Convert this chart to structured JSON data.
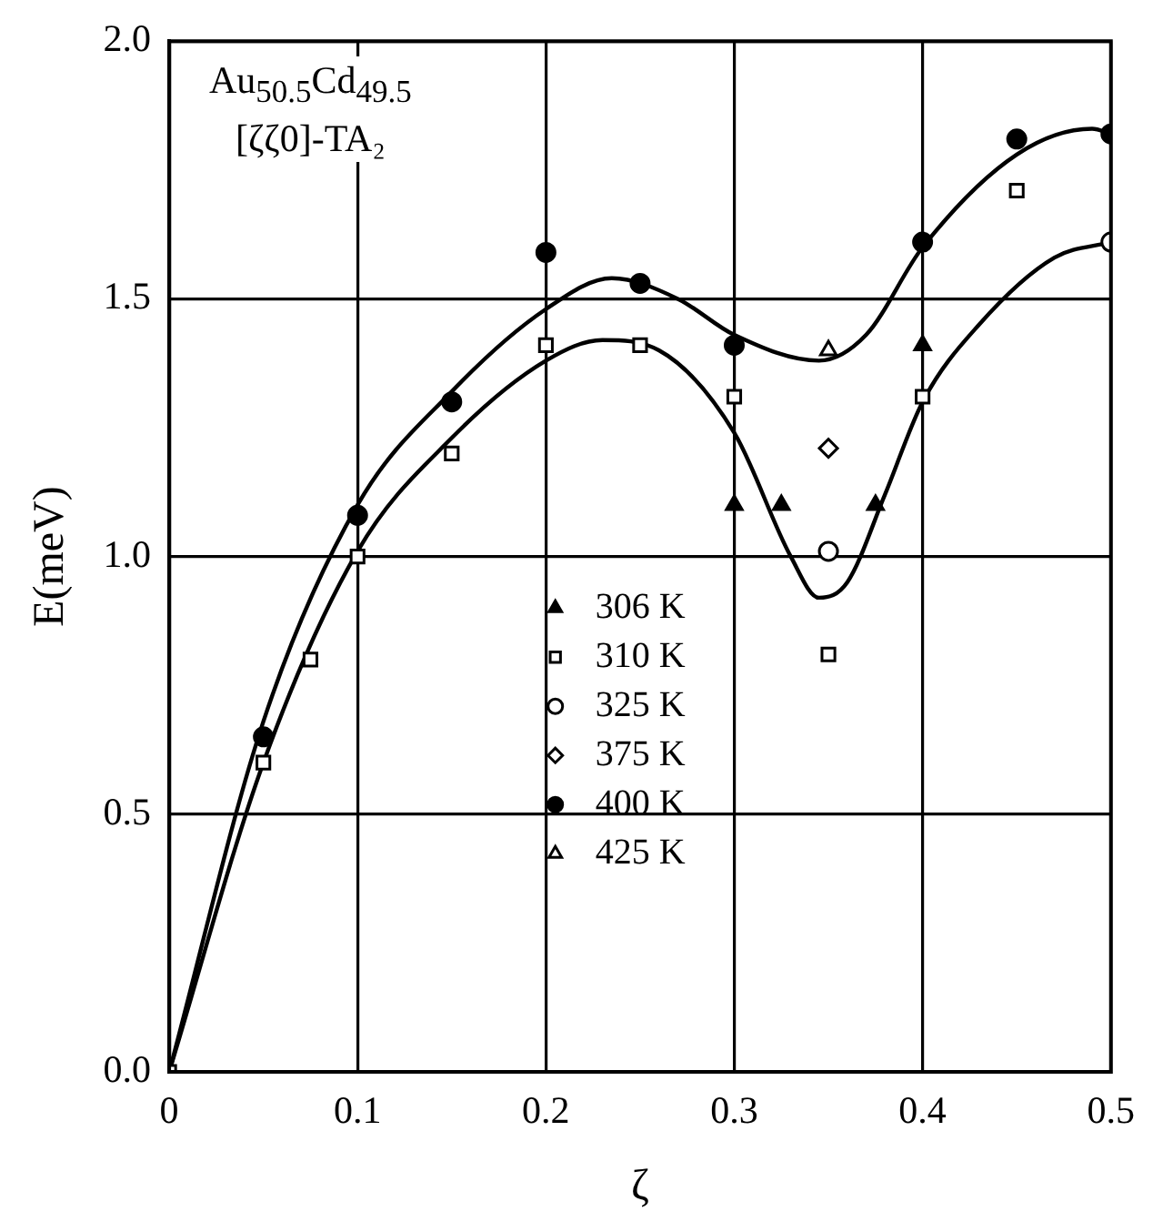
{
  "chart_data": {
    "type": "scatter",
    "xlabel": "ζ",
    "ylabel": "E(meV)",
    "annotations": [
      "Au$_{50.5}$Cd$_{49.5}$",
      "[ζζ0]-TA₂"
    ],
    "xlim": [
      0,
      0.5
    ],
    "xticks": [
      0,
      0.1,
      0.2,
      0.3,
      0.4,
      0.5
    ],
    "ylim": [
      0,
      2
    ],
    "yticks": [
      {
        "value": 0,
        "label": "0.0"
      },
      0.5,
      {
        "value": 1,
        "label": "1.0"
      },
      1.5,
      {
        "value": 2,
        "label": "2.0"
      }
    ],
    "grid": true,
    "legend": "bottom",
    "series": [
      {
        "name": "306 K",
        "color": "#000000",
        "marker": "triangle",
        "x": [
          0.3,
          0.325,
          0.375,
          0.4
        ],
        "values": [
          1.1,
          1.1,
          1.1,
          1.41
        ]
      },
      {
        "name": "310 K",
        "color": "#ffffff",
        "marker": "square",
        "x": [
          0,
          0.05,
          0.075,
          0.1,
          0.15,
          0.2,
          0.25,
          0.3,
          0.35,
          0.4,
          0.45
        ],
        "values": [
          0,
          0.6,
          0.8,
          1.0,
          1.2,
          1.41,
          1.41,
          1.31,
          0.81,
          1.31,
          1.71
        ]
      },
      {
        "name": "325 K",
        "color": "#ffffff",
        "marker": "circle",
        "x": [
          0.35,
          0.5
        ],
        "values": [
          1.01,
          1.61
        ]
      },
      {
        "name": "375 K",
        "color": "#ffffff",
        "marker": "diamond",
        "x": [
          0.35
        ],
        "values": [
          1.21
        ]
      },
      {
        "name": "400 K",
        "color": "#000000",
        "marker": "circle",
        "x": [
          0.05,
          0.1,
          0.15,
          0.2,
          0.25,
          0.3,
          0.4,
          0.45,
          0.5
        ],
        "values": [
          0.65,
          1.08,
          1.3,
          1.59,
          1.53,
          1.41,
          1.61,
          1.81,
          1.82
        ]
      },
      {
        "name": "425 K",
        "color": "#ffffff",
        "marker": "triangle",
        "x": [
          0.35
        ],
        "values": [
          1.4
        ]
      },
      {
        "type": "line",
        "color": "#000000",
        "marker": "none",
        "x": [
          0,
          0.05,
          0.1,
          0.15,
          0.2,
          0.235,
          0.27,
          0.3,
          0.345,
          0.37,
          0.4,
          0.45,
          0.49,
          0.5
        ],
        "values": [
          0,
          0.68,
          1.1,
          1.32,
          1.48,
          1.54,
          1.5,
          1.43,
          1.38,
          1.43,
          1.6,
          1.78,
          1.83,
          1.82
        ]
      },
      {
        "type": "line",
        "color": "#000000",
        "marker": "none",
        "x": [
          0,
          0.05,
          0.1,
          0.15,
          0.2,
          0.23,
          0.26,
          0.3,
          0.33,
          0.345,
          0.36,
          0.38,
          0.4,
          0.43,
          0.47,
          0.5
        ],
        "values": [
          0,
          0.6,
          1.01,
          1.23,
          1.38,
          1.42,
          1.4,
          1.24,
          1.0,
          0.92,
          0.95,
          1.12,
          1.3,
          1.45,
          1.58,
          1.61
        ]
      }
    ]
  }
}
